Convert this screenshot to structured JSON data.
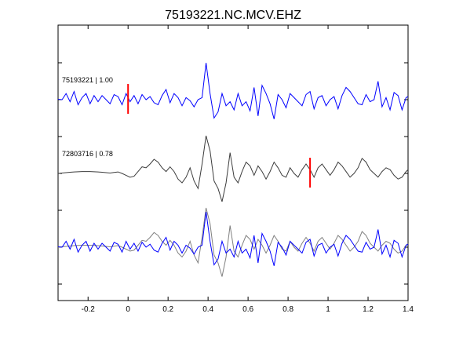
{
  "chart_data": {
    "type": "line",
    "title": "75193221.NC.MCV.EHZ",
    "xlabel": "",
    "ylabel": "",
    "xlim": [
      -0.35,
      1.4
    ],
    "x_ticks": [
      -0.2,
      0,
      0.2,
      0.4,
      0.6,
      0.8,
      1,
      1.2,
      1.4
    ],
    "x_tick_labels": [
      "-0.2",
      "0",
      "0.2",
      "0.4",
      "0.6",
      "0.8",
      "1",
      "1.2",
      "1.4"
    ],
    "grid": false,
    "colors": {
      "primary": "#0000ff",
      "secondary": "#3c3c3c",
      "overlay_secondary": "#808080",
      "pick": "#ff0000"
    },
    "traces": [
      {
        "label": "75193221 | 1.00",
        "color": "#0000ff",
        "pick_time": 0.0,
        "t": [
          -0.35,
          -0.33,
          -0.31,
          -0.29,
          -0.27,
          -0.25,
          -0.23,
          -0.21,
          -0.19,
          -0.17,
          -0.15,
          -0.13,
          -0.11,
          -0.09,
          -0.07,
          -0.05,
          -0.03,
          -0.01,
          0.01,
          0.03,
          0.05,
          0.07,
          0.09,
          0.11,
          0.13,
          0.15,
          0.17,
          0.19,
          0.21,
          0.23,
          0.25,
          0.27,
          0.29,
          0.31,
          0.33,
          0.35,
          0.37,
          0.39,
          0.41,
          0.43,
          0.45,
          0.47,
          0.49,
          0.51,
          0.53,
          0.55,
          0.57,
          0.59,
          0.61,
          0.63,
          0.65,
          0.67,
          0.69,
          0.71,
          0.73,
          0.75,
          0.77,
          0.79,
          0.81,
          0.83,
          0.85,
          0.87,
          0.89,
          0.91,
          0.93,
          0.95,
          0.97,
          0.99,
          1.01,
          1.03,
          1.05,
          1.07,
          1.09,
          1.11,
          1.13,
          1.15,
          1.17,
          1.19,
          1.21,
          1.23,
          1.25,
          1.27,
          1.29,
          1.31,
          1.33,
          1.35,
          1.37,
          1.39,
          1.4
        ],
        "v": [
          0.02,
          0.0,
          0.3,
          -0.1,
          0.4,
          -0.25,
          0.1,
          0.3,
          -0.2,
          0.2,
          -0.1,
          0.2,
          0.0,
          -0.2,
          0.25,
          0.15,
          -0.25,
          0.3,
          -0.1,
          0.2,
          -0.2,
          0.25,
          0.0,
          0.15,
          -0.15,
          -0.25,
          0.2,
          0.5,
          -0.15,
          0.3,
          0.1,
          -0.3,
          0.1,
          -0.05,
          -0.35,
          0.0,
          0.1,
          1.8,
          0.3,
          -0.9,
          -0.6,
          0.3,
          -0.3,
          -0.1,
          -0.5,
          0.3,
          -0.3,
          -0.1,
          -0.55,
          0.6,
          -0.8,
          0.7,
          0.3,
          -0.2,
          -0.95,
          0.25,
          0.0,
          -0.4,
          0.3,
          0.1,
          -0.1,
          -0.3,
          0.25,
          0.4,
          -0.45,
          0.1,
          0.2,
          -0.3,
          0.0,
          0.15,
          -0.45,
          0.2,
          0.6,
          0.4,
          0.1,
          -0.2,
          -0.25,
          0.25,
          -0.1,
          0.0,
          0.9,
          -0.35,
          0.1,
          -0.5,
          0.35,
          0.2,
          -0.5,
          0.1,
          0.15
        ]
      },
      {
        "label": "72803716 | 0.78",
        "color": "#3c3c3c",
        "pick_time": 0.91,
        "t": [
          -0.35,
          -0.33,
          -0.31,
          -0.29,
          -0.27,
          -0.25,
          -0.23,
          -0.21,
          -0.19,
          -0.17,
          -0.15,
          -0.13,
          -0.11,
          -0.09,
          -0.07,
          -0.05,
          -0.03,
          -0.01,
          0.01,
          0.03,
          0.05,
          0.07,
          0.09,
          0.11,
          0.13,
          0.15,
          0.17,
          0.19,
          0.21,
          0.23,
          0.25,
          0.27,
          0.29,
          0.31,
          0.33,
          0.35,
          0.37,
          0.39,
          0.41,
          0.43,
          0.45,
          0.47,
          0.49,
          0.51,
          0.53,
          0.55,
          0.57,
          0.59,
          0.61,
          0.63,
          0.65,
          0.67,
          0.69,
          0.71,
          0.73,
          0.75,
          0.77,
          0.79,
          0.81,
          0.83,
          0.85,
          0.87,
          0.89,
          0.91,
          0.93,
          0.95,
          0.97,
          0.99,
          1.01,
          1.03,
          1.05,
          1.07,
          1.09,
          1.11,
          1.13,
          1.15,
          1.17,
          1.19,
          1.21,
          1.23,
          1.25,
          1.27,
          1.29,
          1.31,
          1.33,
          1.35,
          1.37,
          1.39,
          1.4
        ],
        "v": [
          0.0,
          0.02,
          0.04,
          0.06,
          0.08,
          0.09,
          0.1,
          0.1,
          0.1,
          0.09,
          0.08,
          0.06,
          0.04,
          0.02,
          0.05,
          0.08,
          0.0,
          -0.1,
          -0.2,
          -0.15,
          0.1,
          0.35,
          0.3,
          0.5,
          0.75,
          0.6,
          0.3,
          0.1,
          0.35,
          0.1,
          -0.3,
          -0.5,
          -0.2,
          0.3,
          -0.4,
          -0.8,
          0.5,
          2.0,
          1.2,
          -0.4,
          -0.8,
          -1.5,
          -0.5,
          1.1,
          -0.2,
          -0.5,
          0.1,
          0.6,
          0.4,
          -0.1,
          0.4,
          0.1,
          -0.3,
          0.1,
          0.6,
          0.3,
          -0.1,
          -0.2,
          0.3,
          0.0,
          -0.2,
          0.2,
          0.5,
          0.2,
          -0.2,
          0.3,
          0.5,
          0.2,
          -0.1,
          0.2,
          0.6,
          0.4,
          0.1,
          -0.2,
          0.0,
          0.3,
          0.8,
          0.6,
          0.2,
          0.0,
          -0.2,
          0.1,
          0.3,
          0.2,
          -0.1,
          -0.3,
          -0.2,
          0.1,
          0.2
        ]
      }
    ],
    "overlay": {
      "description_visible": false
    }
  }
}
